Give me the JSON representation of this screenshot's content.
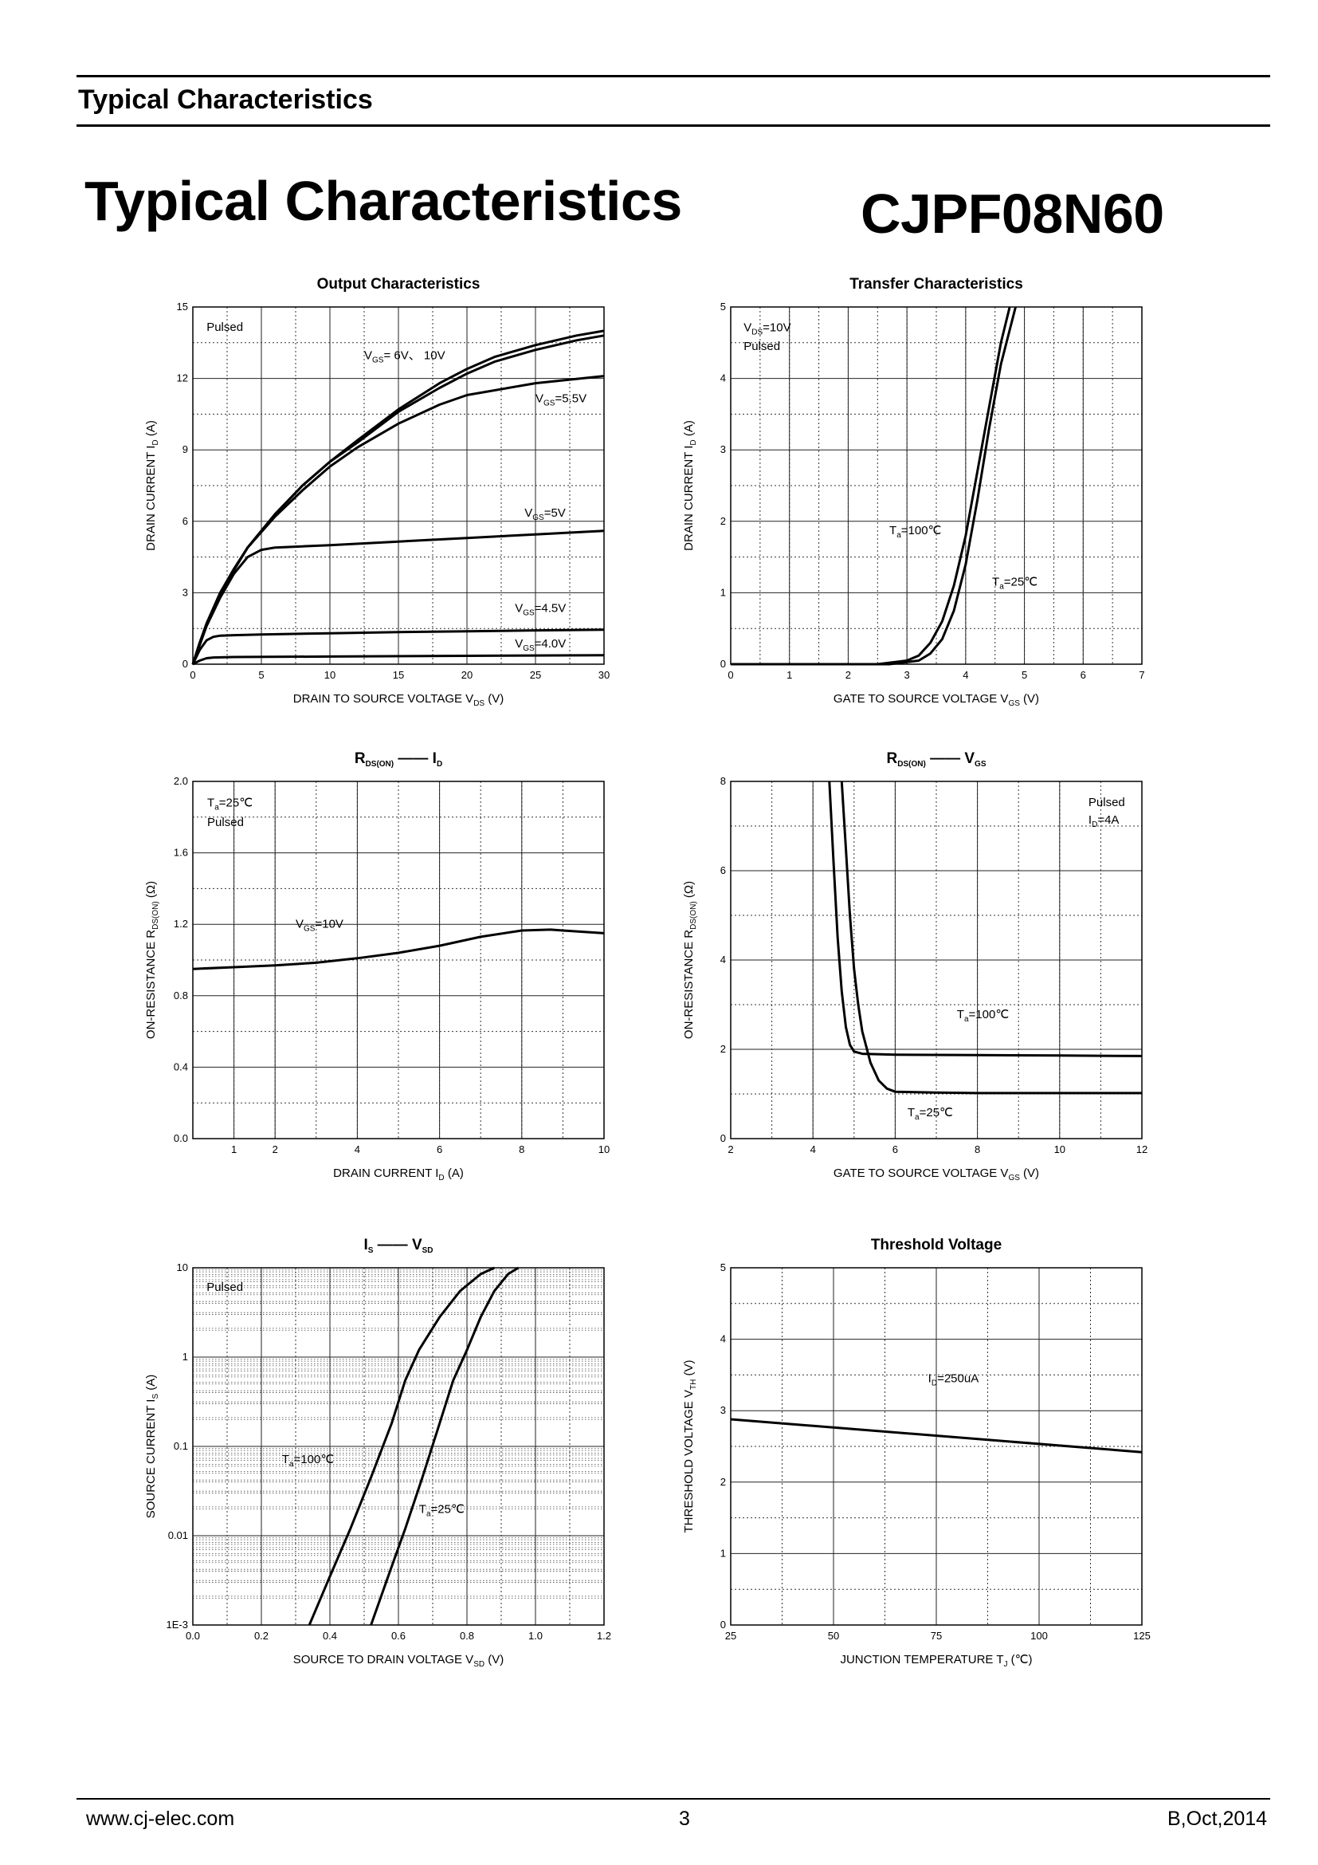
{
  "header": {
    "section_title": "Typical Characteristics"
  },
  "main": {
    "title": "Typical Characteristics",
    "part_number": "CJPF08N60"
  },
  "footer": {
    "url": "www.cj-elec.com",
    "page": "3",
    "revision": "B,Oct,2014"
  },
  "chart_data": [
    {
      "type": "line",
      "title": "Output Characteristics",
      "xlabel": "DRAIN TO SOURCE VOLTAGE",
      "xlabel_sym": "V",
      "xlabel_sub": "DS",
      "xlabel_unit": "(V)",
      "ylabel": "DRAIN CURRENT",
      "ylabel_sym": "I",
      "ylabel_sub": "D",
      "ylabel_unit": "(A)",
      "xlim": [
        0,
        30
      ],
      "ylim": [
        0,
        15
      ],
      "xticks": [
        0,
        5,
        10,
        15,
        20,
        25,
        30
      ],
      "yticks": [
        0,
        3,
        6,
        9,
        12,
        15
      ],
      "notes": [
        {
          "text": "Pulsed",
          "x": 1,
          "y": 14.0
        }
      ],
      "series": [
        {
          "name": "VGS=10V",
          "x": [
            0,
            0.5,
            1,
            2,
            3,
            4,
            5,
            6,
            8,
            10,
            12,
            15,
            18,
            20,
            22,
            25,
            28,
            30
          ],
          "y": [
            0,
            0.9,
            1.7,
            3.0,
            4.0,
            4.9,
            5.6,
            6.3,
            7.5,
            8.5,
            9.4,
            10.7,
            11.8,
            12.4,
            12.9,
            13.4,
            13.8,
            14.0
          ]
        },
        {
          "name": "VGS=6V",
          "x": [
            0,
            0.5,
            1,
            2,
            3,
            4,
            5,
            6,
            8,
            10,
            12,
            15,
            18,
            20,
            22,
            25,
            28,
            30
          ],
          "y": [
            0,
            0.9,
            1.7,
            3.0,
            4.0,
            4.9,
            5.6,
            6.3,
            7.5,
            8.5,
            9.3,
            10.6,
            11.6,
            12.2,
            12.7,
            13.2,
            13.6,
            13.8
          ]
        },
        {
          "name": "VGS=5.5V",
          "x": [
            0,
            1,
            2,
            4,
            6,
            8,
            10,
            12,
            15,
            18,
            20,
            25,
            30
          ],
          "y": [
            0,
            1.7,
            3.0,
            4.9,
            6.2,
            7.3,
            8.3,
            9.1,
            10.1,
            10.9,
            11.3,
            11.8,
            12.1
          ]
        },
        {
          "name": "VGS=5V",
          "x": [
            0,
            1,
            2,
            3,
            4,
            5,
            6,
            8,
            10,
            15,
            20,
            25,
            30
          ],
          "y": [
            0,
            1.6,
            2.8,
            3.8,
            4.5,
            4.8,
            4.9,
            4.95,
            5.0,
            5.15,
            5.3,
            5.45,
            5.6
          ]
        },
        {
          "name": "VGS=4.5V",
          "x": [
            0,
            0.5,
            1,
            1.5,
            2,
            3,
            5,
            10,
            15,
            20,
            25,
            30
          ],
          "y": [
            0,
            0.6,
            1.0,
            1.15,
            1.2,
            1.22,
            1.25,
            1.3,
            1.35,
            1.38,
            1.42,
            1.45
          ]
        },
        {
          "name": "VGS=4.0V",
          "x": [
            0,
            0.5,
            1,
            1.5,
            3,
            10,
            20,
            30
          ],
          "y": [
            0,
            0.15,
            0.25,
            0.28,
            0.3,
            0.32,
            0.35,
            0.38
          ]
        }
      ],
      "labels": [
        {
          "sym": "V",
          "sub": "GS",
          "text": "= 6V、 10V",
          "x": 12.5,
          "y": 12.8
        },
        {
          "sym": "V",
          "sub": "GS",
          "text": "=5.5V",
          "x": 25.0,
          "y": 11.0
        },
        {
          "sym": "V",
          "sub": "GS",
          "text": "=5V",
          "x": 24.2,
          "y": 6.2
        },
        {
          "sym": "V",
          "sub": "GS",
          "text": "=4.5V",
          "x": 23.5,
          "y": 2.2
        },
        {
          "sym": "V",
          "sub": "GS",
          "text": "=4.0V",
          "x": 23.5,
          "y": 0.7
        }
      ]
    },
    {
      "type": "line",
      "title": "Transfer Characteristics",
      "xlabel": "GATE TO SOURCE VOLTAGE",
      "xlabel_sym": "V",
      "xlabel_sub": "GS",
      "xlabel_unit": "(V)",
      "ylabel": "DRAIN CURRENT",
      "ylabel_sym": "I",
      "ylabel_sub": "D",
      "ylabel_unit": "(A)",
      "xlim": [
        0,
        7
      ],
      "ylim": [
        0,
        5
      ],
      "xticks": [
        0,
        1,
        2,
        3,
        4,
        5,
        6,
        7
      ],
      "yticks": [
        0,
        1,
        2,
        3,
        4,
        5
      ],
      "notes": [
        {
          "text": "Pulsed",
          "x": 0.22,
          "y": 4.4
        }
      ],
      "series": [
        {
          "name": "Ta=100℃",
          "x": [
            0,
            2.5,
            3.0,
            3.2,
            3.4,
            3.6,
            3.8,
            4.0,
            4.2,
            4.4,
            4.6,
            4.75
          ],
          "y": [
            0,
            0,
            0.05,
            0.12,
            0.3,
            0.6,
            1.1,
            1.8,
            2.7,
            3.6,
            4.5,
            5.0
          ]
        },
        {
          "name": "Ta=25℃",
          "x": [
            0,
            2.7,
            3.2,
            3.4,
            3.6,
            3.8,
            4.0,
            4.2,
            4.4,
            4.6,
            4.85
          ],
          "y": [
            0,
            0,
            0.05,
            0.15,
            0.35,
            0.75,
            1.4,
            2.3,
            3.3,
            4.2,
            5.0
          ]
        }
      ],
      "labels": [
        {
          "sym": "V",
          "sub": "DS",
          "text": "=10V",
          "x": 0.22,
          "y": 4.66
        },
        {
          "sym": "T",
          "sub": "a",
          "text": "=100℃",
          "x": 2.7,
          "y": 1.82
        },
        {
          "sym": "T",
          "sub": "a",
          "text": "=25℃",
          "x": 4.45,
          "y": 1.1
        }
      ]
    },
    {
      "type": "line",
      "title": "RDS(ON) — ID",
      "title_parts": {
        "a": "R",
        "a_sub": "DS(ON)",
        "b": "I",
        "b_sub": "D"
      },
      "xlabel": "DRAIN CURRENT",
      "xlabel_sym": "I",
      "xlabel_sub": "D",
      "xlabel_unit": "(A)",
      "ylabel": "ON-RESISTANCE",
      "ylabel_sym": "R",
      "ylabel_sub": "DS(ON)",
      "ylabel_unit": "(Ω)",
      "xlim": [
        0,
        10
      ],
      "ylim": [
        0,
        2.0
      ],
      "xticks": [
        1,
        2,
        4,
        6,
        8,
        10
      ],
      "yticks": [
        0.0,
        0.4,
        0.8,
        1.2,
        1.6,
        2.0
      ],
      "ytick_labels": [
        "0.0",
        "0.4",
        "0.8",
        "1.2",
        "1.6",
        "2.0"
      ],
      "notes": [
        {
          "text": "Pulsed",
          "x": 0.35,
          "y": 1.75
        }
      ],
      "series": [
        {
          "name": "VGS=10V",
          "x": [
            0,
            1,
            2,
            3,
            4,
            5,
            6,
            7,
            8,
            8.7,
            9,
            10
          ],
          "y": [
            0.95,
            0.96,
            0.97,
            0.985,
            1.01,
            1.04,
            1.08,
            1.13,
            1.165,
            1.17,
            1.165,
            1.15
          ]
        }
      ],
      "labels": [
        {
          "sym": "T",
          "sub": "a",
          "text": "=25℃",
          "x": 0.35,
          "y": 1.86
        },
        {
          "sym": "V",
          "sub": "GS",
          "text": "=10V",
          "x": 2.5,
          "y": 1.18
        }
      ]
    },
    {
      "type": "line",
      "title": "RDS(ON) — VGS",
      "title_parts": {
        "a": "R",
        "a_sub": "DS(ON)",
        "b": "V",
        "b_sub": "GS"
      },
      "xlabel": "GATE TO SOURCE VOLTAGE",
      "xlabel_sym": "V",
      "xlabel_sub": "GS",
      "xlabel_unit": "(V)",
      "ylabel": "ON-RESISTANCE",
      "ylabel_sym": "R",
      "ylabel_sub": "DS(ON)",
      "ylabel_unit": "(Ω)",
      "xlim": [
        2,
        12
      ],
      "ylim": [
        0,
        8
      ],
      "xticks": [
        2,
        4,
        6,
        8,
        10,
        12
      ],
      "yticks": [
        0,
        2,
        4,
        6,
        8
      ],
      "notes": [
        {
          "text": "Pulsed",
          "x": 10.7,
          "y": 7.45
        }
      ],
      "series": [
        {
          "name": "Ta=100℃",
          "x": [
            4.4,
            4.5,
            4.6,
            4.7,
            4.8,
            4.9,
            5.0,
            5.2,
            6,
            8,
            10,
            12
          ],
          "y": [
            8,
            6.2,
            4.5,
            3.3,
            2.5,
            2.1,
            1.95,
            1.9,
            1.88,
            1.87,
            1.86,
            1.85
          ]
        },
        {
          "name": "Ta=25℃",
          "x": [
            4.7,
            4.8,
            4.9,
            5.0,
            5.1,
            5.2,
            5.4,
            5.6,
            5.8,
            6.0,
            7,
            8,
            10,
            12
          ],
          "y": [
            8,
            6.5,
            5.0,
            3.8,
            3.0,
            2.4,
            1.7,
            1.3,
            1.12,
            1.05,
            1.03,
            1.02,
            1.02,
            1.02
          ]
        }
      ],
      "labels": [
        {
          "sym": "I",
          "sub": "D",
          "text": "=4A",
          "x": 10.7,
          "y": 7.05
        },
        {
          "sym": "T",
          "sub": "a",
          "text": "=100℃",
          "x": 7.5,
          "y": 2.7
        },
        {
          "sym": "T",
          "sub": "a",
          "text": "=25℃",
          "x": 6.3,
          "y": 0.5
        }
      ]
    },
    {
      "type": "line",
      "title": "IS — VSD",
      "title_parts": {
        "a": "I",
        "a_sub": "S",
        "b": "V",
        "b_sub": "SD"
      },
      "xlabel": "SOURCE TO DRAIN VOLTAGE",
      "xlabel_sym": "V",
      "xlabel_sub": "SD",
      "xlabel_unit": "(V)",
      "ylabel": "SOURCE CURRENT",
      "ylabel_sym": "I",
      "ylabel_sub": "S",
      "ylabel_unit": "(A)",
      "yscale": "log",
      "xlim": [
        0,
        1.2
      ],
      "ylim": [
        0.001,
        10
      ],
      "xticks": [
        0.0,
        0.2,
        0.4,
        0.6,
        0.8,
        1.0,
        1.2
      ],
      "xtick_labels": [
        "0.0",
        "0.2",
        "0.4",
        "0.6",
        "0.8",
        "1.0",
        "1.2"
      ],
      "yticks": [
        0.001,
        0.01,
        0.1,
        1,
        10
      ],
      "ytick_labels": [
        "1E-3",
        "0.01",
        "0.1",
        "1",
        "10"
      ],
      "notes": [
        {
          "text": "Pulsed",
          "x": 0.04,
          "y": 5.5
        }
      ],
      "series": [
        {
          "name": "Ta=100℃",
          "x": [
            0.34,
            0.4,
            0.46,
            0.52,
            0.58,
            0.62,
            0.66,
            0.72,
            0.78,
            0.84,
            0.88
          ],
          "y": [
            0.001,
            0.0035,
            0.012,
            0.045,
            0.18,
            0.55,
            1.2,
            2.8,
            5.5,
            8.5,
            10
          ]
        },
        {
          "name": "Ta=25℃",
          "x": [
            0.52,
            0.57,
            0.62,
            0.67,
            0.72,
            0.76,
            0.8,
            0.84,
            0.88,
            0.92,
            0.95
          ],
          "y": [
            0.001,
            0.0035,
            0.012,
            0.045,
            0.18,
            0.55,
            1.2,
            2.8,
            5.5,
            8.5,
            10
          ]
        }
      ],
      "labels": [
        {
          "sym": "T",
          "sub": "a",
          "text": "=100℃",
          "x": 0.26,
          "y": 0.065
        },
        {
          "sym": "T",
          "sub": "a",
          "text": "=25℃",
          "x": 0.66,
          "y": 0.018
        }
      ]
    },
    {
      "type": "line",
      "title": "Threshold Voltage",
      "xlabel": "JUNCTION TEMPERATURE",
      "xlabel_sym": "T",
      "xlabel_sub": "J",
      "xlabel_unit": "(℃)",
      "ylabel": "THRESHOLD VOLTAGE",
      "ylabel_sym": "V",
      "ylabel_sub": "TH",
      "ylabel_unit": "(V)",
      "xlim": [
        25,
        125
      ],
      "ylim": [
        0,
        5
      ],
      "xticks": [
        25,
        50,
        75,
        100,
        125
      ],
      "yticks": [
        0,
        1,
        2,
        3,
        4,
        5
      ],
      "notes": [],
      "series": [
        {
          "name": "ID=250uA",
          "x": [
            25,
            125
          ],
          "y": [
            2.88,
            2.42
          ]
        }
      ],
      "labels": [
        {
          "sym": "I",
          "sub": "D",
          "text": "=250uA",
          "x": 73,
          "y": 3.4
        }
      ]
    }
  ]
}
